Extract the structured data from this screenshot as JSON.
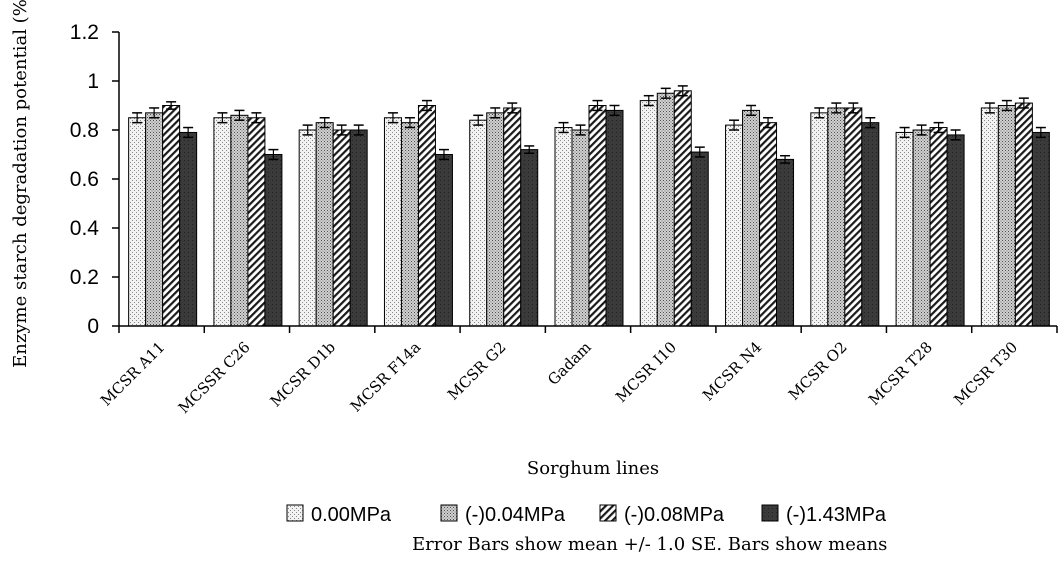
{
  "chart_data": {
    "type": "bar",
    "xlabel": "Sorghum lines",
    "ylabel": "Enzyme starch degradation potential (%)",
    "ylim": [
      0,
      1.2
    ],
    "yticks": [
      "0",
      "0.2",
      "0.4",
      "0.6",
      "0.8",
      "1",
      "1.2"
    ],
    "grid": false,
    "legend_position": "bottom",
    "note": "Error Bars show mean +/- 1.0 SE. Bars show means",
    "categories": [
      "MCSR A11",
      "MCSSR C26",
      "MCSR D1b",
      "MCSR F14a",
      "MCSR G2",
      "Gadam",
      "MCSR I10",
      "MCSR N4",
      "MCSR O2",
      "MCSR T28",
      "MCSR T30"
    ],
    "series": [
      {
        "name": "0.00MPa",
        "pattern": "light-dots",
        "color": "#e8e8e8",
        "values": [
          0.85,
          0.85,
          0.8,
          0.85,
          0.84,
          0.81,
          0.92,
          0.82,
          0.87,
          0.79,
          0.89
        ],
        "errors": [
          0.02,
          0.02,
          0.02,
          0.02,
          0.02,
          0.02,
          0.02,
          0.02,
          0.02,
          0.02,
          0.02
        ]
      },
      {
        "name": "(-)0.04MPa",
        "pattern": "dense-dots",
        "color": "#b0b0b0",
        "values": [
          0.87,
          0.86,
          0.83,
          0.83,
          0.87,
          0.8,
          0.95,
          0.88,
          0.89,
          0.8,
          0.9
        ],
        "errors": [
          0.02,
          0.02,
          0.02,
          0.02,
          0.02,
          0.02,
          0.02,
          0.02,
          0.02,
          0.02,
          0.02
        ]
      },
      {
        "name": "(-)0.08MPa",
        "pattern": "diagonal-hatch",
        "color": "#555555",
        "values": [
          0.9,
          0.85,
          0.8,
          0.9,
          0.89,
          0.9,
          0.96,
          0.83,
          0.89,
          0.81,
          0.91
        ],
        "errors": [
          0.015,
          0.02,
          0.02,
          0.02,
          0.02,
          0.02,
          0.02,
          0.02,
          0.02,
          0.02,
          0.02
        ]
      },
      {
        "name": "(-)1.43MPa",
        "pattern": "solid-dark",
        "color": "#3a3a3a",
        "values": [
          0.79,
          0.7,
          0.8,
          0.7,
          0.72,
          0.88,
          0.71,
          0.68,
          0.83,
          0.78,
          0.79
        ],
        "errors": [
          0.02,
          0.02,
          0.02,
          0.02,
          0.015,
          0.02,
          0.02,
          0.015,
          0.02,
          0.02,
          0.02
        ]
      }
    ]
  }
}
